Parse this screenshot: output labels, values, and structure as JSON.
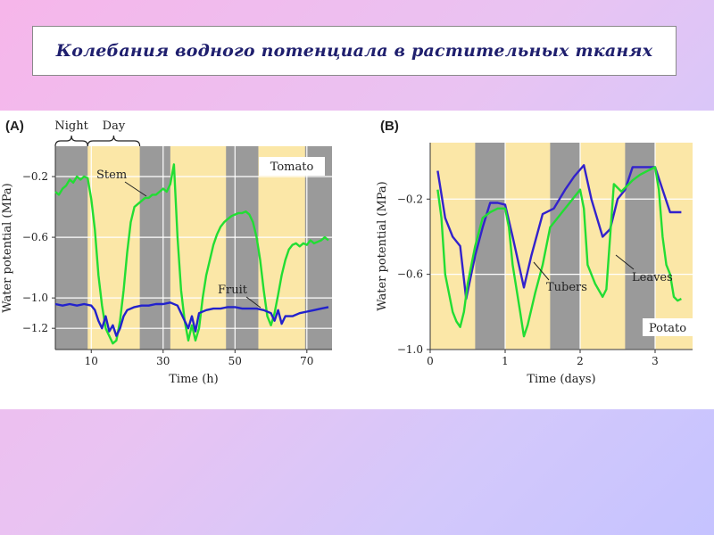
{
  "title": "Колебания водного потенциала в растительных тканях",
  "colors": {
    "night": "#9a9a9a",
    "day": "#fbe7a7",
    "stem": "#22dd33",
    "fruit": "#2222cc",
    "leaves": "#22dd33",
    "tubers": "#3322cc"
  },
  "chart_data": [
    {
      "type": "line",
      "panel": "(A)",
      "corner_label": "Tomato",
      "xlabel": "Time (h)",
      "ylabel": "Water potential (MPa)",
      "xlim": [
        0,
        77
      ],
      "ylim": [
        -1.34,
        0.0
      ],
      "x_ticks": [
        10,
        30,
        50,
        70
      ],
      "y_ticks": [
        -0.2,
        -0.6,
        -1.0,
        -1.2
      ],
      "y_tick_labels": [
        "−0.2",
        "−0.6",
        "−1.0",
        "−1.2"
      ],
      "shading_labels": {
        "night": "Night",
        "day": "Day"
      },
      "night_intervals": [
        [
          0,
          9
        ],
        [
          23.5,
          32
        ],
        [
          47.5,
          56.5
        ],
        [
          69.5,
          77
        ]
      ],
      "night_label_span": [
        0,
        9
      ],
      "day_label_span": [
        9,
        23.5
      ],
      "series": [
        {
          "name": "Stem",
          "x": [
            0,
            1,
            2,
            3,
            4,
            5,
            6,
            7,
            8,
            9,
            10,
            11,
            12,
            13,
            14,
            15,
            16,
            17,
            18,
            19,
            20,
            21,
            22,
            23,
            24,
            25,
            26,
            27,
            28,
            29,
            30,
            31,
            32,
            33,
            34,
            35,
            36,
            37,
            38,
            39,
            40,
            41,
            42,
            43,
            44,
            45,
            46,
            47,
            48,
            49,
            50,
            51,
            52,
            53,
            54,
            55,
            56,
            57,
            58,
            59,
            60,
            61,
            62,
            63,
            64,
            65,
            66,
            67,
            68,
            69,
            70,
            71,
            72,
            73,
            74,
            75,
            76
          ],
          "y": [
            -0.3,
            -0.32,
            -0.28,
            -0.26,
            -0.22,
            -0.24,
            -0.2,
            -0.22,
            -0.2,
            -0.21,
            -0.35,
            -0.55,
            -0.85,
            -1.05,
            -1.2,
            -1.25,
            -1.3,
            -1.28,
            -1.15,
            -0.95,
            -0.7,
            -0.5,
            -0.4,
            -0.38,
            -0.36,
            -0.34,
            -0.34,
            -0.32,
            -0.32,
            -0.3,
            -0.28,
            -0.3,
            -0.25,
            -0.12,
            -0.6,
            -0.95,
            -1.15,
            -1.28,
            -1.18,
            -1.28,
            -1.2,
            -1.0,
            -0.85,
            -0.75,
            -0.65,
            -0.58,
            -0.53,
            -0.5,
            -0.48,
            -0.46,
            -0.45,
            -0.44,
            -0.44,
            -0.43,
            -0.45,
            -0.5,
            -0.6,
            -0.75,
            -0.95,
            -1.12,
            -1.18,
            -1.1,
            -0.98,
            -0.85,
            -0.75,
            -0.68,
            -0.65,
            -0.64,
            -0.66,
            -0.64,
            -0.65,
            -0.62,
            -0.64,
            -0.63,
            -0.62,
            -0.6,
            -0.62
          ]
        },
        {
          "name": "Fruit",
          "x": [
            0,
            2,
            4,
            6,
            8,
            10,
            11,
            12,
            13,
            14,
            15,
            16,
            17,
            18,
            19,
            20,
            22,
            24,
            26,
            28,
            30,
            32,
            34,
            35,
            36,
            37,
            38,
            39,
            40,
            42,
            44,
            46,
            48,
            50,
            52,
            54,
            56,
            58,
            60,
            61,
            62,
            63,
            64,
            66,
            68,
            70,
            72,
            74,
            76
          ],
          "y": [
            -1.04,
            -1.05,
            -1.04,
            -1.05,
            -1.04,
            -1.05,
            -1.08,
            -1.15,
            -1.2,
            -1.12,
            -1.22,
            -1.18,
            -1.25,
            -1.2,
            -1.12,
            -1.08,
            -1.06,
            -1.05,
            -1.05,
            -1.04,
            -1.04,
            -1.03,
            -1.05,
            -1.1,
            -1.15,
            -1.2,
            -1.12,
            -1.22,
            -1.1,
            -1.08,
            -1.07,
            -1.07,
            -1.06,
            -1.06,
            -1.07,
            -1.07,
            -1.07,
            -1.08,
            -1.1,
            -1.15,
            -1.08,
            -1.17,
            -1.12,
            -1.12,
            -1.1,
            -1.09,
            -1.08,
            -1.07,
            -1.06
          ]
        }
      ]
    },
    {
      "type": "line",
      "panel": "(B)",
      "corner_label": "Potato",
      "xlabel": "Time (days)",
      "ylabel": "Water potential (MPa)",
      "xlim": [
        0,
        3.5
      ],
      "ylim": [
        -1.0,
        0.1
      ],
      "x_ticks": [
        0,
        1,
        2,
        3
      ],
      "y_ticks": [
        -0.2,
        -0.6,
        -1.0
      ],
      "y_tick_labels": [
        "−0.2",
        "−0.6",
        "−1.0"
      ],
      "night_intervals": [
        [
          0.6,
          1.0
        ],
        [
          1.6,
          2.0
        ],
        [
          2.6,
          3.0
        ]
      ],
      "series": [
        {
          "name": "Tubers",
          "x": [
            0.1,
            0.2,
            0.3,
            0.4,
            0.48,
            0.6,
            0.7,
            0.8,
            0.9,
            1.0,
            1.1,
            1.25,
            1.35,
            1.5,
            1.65,
            1.8,
            1.92,
            2.05,
            2.15,
            2.3,
            2.4,
            2.5,
            2.6,
            2.7,
            2.8,
            2.9,
            3.0,
            3.1,
            3.2,
            3.35
          ],
          "y": [
            -0.05,
            -0.3,
            -0.4,
            -0.45,
            -0.73,
            -0.5,
            -0.35,
            -0.22,
            -0.22,
            -0.23,
            -0.4,
            -0.67,
            -0.5,
            -0.28,
            -0.25,
            -0.15,
            -0.08,
            -0.02,
            -0.2,
            -0.4,
            -0.36,
            -0.2,
            -0.15,
            -0.03,
            -0.03,
            -0.03,
            -0.03,
            -0.15,
            -0.27,
            -0.27
          ]
        },
        {
          "name": "Leaves",
          "x": [
            0.1,
            0.15,
            0.2,
            0.25,
            0.3,
            0.35,
            0.4,
            0.45,
            0.5,
            0.6,
            0.7,
            0.8,
            0.9,
            1.0,
            1.05,
            1.1,
            1.2,
            1.25,
            1.3,
            1.4,
            1.5,
            1.6,
            1.7,
            1.8,
            1.9,
            2.0,
            2.05,
            2.1,
            2.2,
            2.3,
            2.35,
            2.4,
            2.45,
            2.5,
            2.55,
            2.6,
            2.7,
            2.8,
            2.9,
            3.0,
            3.05,
            3.1,
            3.15,
            3.2,
            3.25,
            3.3,
            3.35
          ],
          "y": [
            -0.15,
            -0.3,
            -0.6,
            -0.7,
            -0.8,
            -0.85,
            -0.88,
            -0.8,
            -0.65,
            -0.45,
            -0.3,
            -0.27,
            -0.25,
            -0.25,
            -0.35,
            -0.55,
            -0.8,
            -0.93,
            -0.87,
            -0.7,
            -0.55,
            -0.35,
            -0.3,
            -0.25,
            -0.2,
            -0.15,
            -0.25,
            -0.55,
            -0.65,
            -0.72,
            -0.68,
            -0.4,
            -0.12,
            -0.14,
            -0.16,
            -0.14,
            -0.1,
            -0.07,
            -0.05,
            -0.03,
            -0.15,
            -0.4,
            -0.55,
            -0.6,
            -0.72,
            -0.74,
            -0.73
          ]
        }
      ]
    }
  ]
}
